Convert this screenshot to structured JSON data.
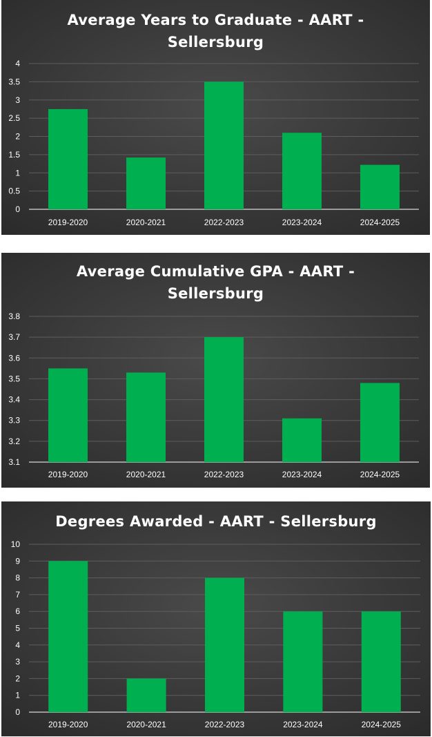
{
  "chart_data": [
    {
      "type": "bar",
      "title_lines": [
        "Average Years to Graduate - AART -",
        "Sellersburg"
      ],
      "categories": [
        "2019-2020",
        "2020-2021",
        "2022-2023",
        "2023-2024",
        "2024-2025"
      ],
      "values": [
        2.75,
        1.42,
        3.5,
        2.1,
        1.22
      ],
      "ylim": [
        0,
        4
      ],
      "yticks": [
        "0",
        "0.5",
        "1",
        "1.5",
        "2",
        "2.5",
        "3",
        "3.5",
        "4"
      ],
      "xlabel": "",
      "ylabel": "",
      "grid": true,
      "legend": "none",
      "bar_color": "#00b050",
      "background": "#3a3a3a"
    },
    {
      "type": "bar",
      "title_lines": [
        "Average Cumulative GPA - AART -",
        "Sellersburg"
      ],
      "categories": [
        "2019-2020",
        "2020-2021",
        "2022-2023",
        "2023-2024",
        "2024-2025"
      ],
      "values": [
        3.55,
        3.53,
        3.7,
        3.31,
        3.48
      ],
      "ylim": [
        3.1,
        3.8
      ],
      "yticks": [
        "3.1",
        "3.2",
        "3.3",
        "3.4",
        "3.5",
        "3.6",
        "3.7",
        "3.8"
      ],
      "xlabel": "",
      "ylabel": "",
      "grid": true,
      "legend": "none",
      "bar_color": "#00b050",
      "background": "#3a3a3a"
    },
    {
      "type": "bar",
      "title_lines": [
        "Degrees Awarded - AART - Sellersburg"
      ],
      "categories": [
        "2019-2020",
        "2020-2021",
        "2022-2023",
        "2023-2024",
        "2024-2025"
      ],
      "values": [
        9,
        2,
        8,
        6,
        6
      ],
      "ylim": [
        0,
        10
      ],
      "yticks": [
        "0",
        "1",
        "2",
        "3",
        "4",
        "5",
        "6",
        "7",
        "8",
        "9",
        "10"
      ],
      "xlabel": "",
      "ylabel": "",
      "grid": true,
      "legend": "none",
      "bar_color": "#00b050",
      "background": "#3a3a3a"
    }
  ]
}
